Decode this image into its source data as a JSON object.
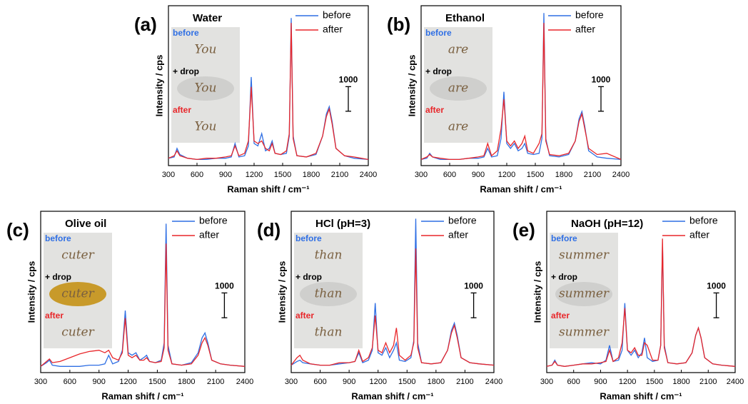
{
  "chart_data": [
    {
      "type": "line",
      "panel": "(a)",
      "title": "Water",
      "xlabel": "Raman shift / cm⁻¹",
      "ylabel": "Intensity / cps",
      "x": [
        300,
        360,
        390,
        420,
        500,
        600,
        700,
        800,
        900,
        960,
        1000,
        1040,
        1100,
        1140,
        1170,
        1200,
        1240,
        1280,
        1320,
        1360,
        1390,
        1420,
        1480,
        1540,
        1570,
        1590,
        1610,
        1650,
        1750,
        1850,
        1920,
        1960,
        1990,
        2020,
        2060,
        2150,
        2250,
        2400
      ],
      "series": [
        {
          "name": "before",
          "color": "#2f6fe4",
          "values": [
            300,
            350,
            700,
            450,
            300,
            250,
            250,
            300,
            300,
            350,
            900,
            350,
            400,
            800,
            3600,
            900,
            800,
            1300,
            600,
            700,
            1000,
            500,
            450,
            500,
            1200,
            6000,
            1200,
            400,
            350,
            450,
            1200,
            2100,
            2400,
            1800,
            700,
            400,
            300,
            250
          ]
        },
        {
          "name": "after",
          "color": "#e8262a",
          "values": [
            300,
            400,
            600,
            400,
            300,
            250,
            300,
            300,
            350,
            400,
            800,
            400,
            500,
            1000,
            3200,
            1000,
            900,
            1000,
            700,
            600,
            900,
            500,
            450,
            600,
            1300,
            5800,
            1100,
            400,
            350,
            500,
            1200,
            2000,
            2300,
            1700,
            700,
            400,
            350,
            250
          ]
        }
      ],
      "xlim": [
        300,
        2400
      ],
      "xticks": [
        300,
        600,
        900,
        1200,
        1500,
        1800,
        2100,
        2400
      ],
      "ylim": [
        0,
        6500
      ],
      "scale_bar": 1000,
      "inset": {
        "labels": [
          "before",
          "+ drop",
          "after"
        ],
        "word": "You"
      }
    },
    {
      "type": "line",
      "panel": "(b)",
      "title": "Ethanol",
      "xlabel": "Raman shift / cm⁻¹",
      "ylabel": "Intensity / cps",
      "x": [
        300,
        360,
        390,
        420,
        500,
        600,
        700,
        800,
        900,
        960,
        1000,
        1040,
        1100,
        1140,
        1170,
        1200,
        1240,
        1280,
        1320,
        1360,
        1390,
        1420,
        1480,
        1540,
        1570,
        1590,
        1610,
        1650,
        1750,
        1850,
        1920,
        1960,
        1990,
        2020,
        2060,
        2150,
        2250,
        2400
      ],
      "series": [
        {
          "name": "before",
          "color": "#2f6fe4",
          "values": [
            250,
            300,
            500,
            350,
            250,
            250,
            250,
            300,
            300,
            350,
            700,
            350,
            400,
            1100,
            3000,
            900,
            700,
            900,
            600,
            700,
            900,
            500,
            450,
            500,
            1100,
            6200,
            1100,
            400,
            350,
            450,
            1000,
            1900,
            2200,
            1600,
            600,
            350,
            300,
            250
          ]
        },
        {
          "name": "after",
          "color": "#e8262a",
          "values": [
            250,
            350,
            450,
            350,
            300,
            250,
            250,
            300,
            350,
            400,
            900,
            400,
            600,
            1500,
            2700,
            1000,
            800,
            1000,
            700,
            900,
            1200,
            600,
            500,
            900,
            1300,
            5800,
            1000,
            450,
            400,
            500,
            1000,
            1800,
            2100,
            1500,
            700,
            450,
            500,
            250
          ]
        }
      ],
      "xlim": [
        300,
        2400
      ],
      "xticks": [
        300,
        600,
        900,
        1200,
        1500,
        1800,
        2100,
        2400
      ],
      "ylim": [
        0,
        6500
      ],
      "scale_bar": 1000,
      "inset": {
        "labels": [
          "before",
          "+ drop",
          "after"
        ],
        "word": "are"
      }
    },
    {
      "type": "line",
      "panel": "(c)",
      "title": "Olive oil",
      "xlabel": "Raman shift / cm⁻¹",
      "ylabel": "Intensity / cps",
      "x": [
        300,
        360,
        390,
        420,
        500,
        600,
        700,
        800,
        900,
        960,
        1000,
        1040,
        1100,
        1140,
        1170,
        1200,
        1240,
        1280,
        1320,
        1360,
        1390,
        1420,
        1480,
        1540,
        1570,
        1590,
        1610,
        1650,
        1750,
        1850,
        1920,
        1960,
        1990,
        2020,
        2060,
        2150,
        2250,
        2400
      ],
      "series": [
        {
          "name": "before",
          "color": "#2f6fe4",
          "values": [
            250,
            400,
            500,
            300,
            250,
            250,
            250,
            300,
            300,
            350,
            700,
            350,
            450,
            900,
            2500,
            800,
            700,
            800,
            500,
            600,
            700,
            450,
            400,
            500,
            1200,
            6000,
            1100,
            350,
            300,
            400,
            800,
            1400,
            1600,
            1200,
            500,
            350,
            300,
            250
          ]
        },
        {
          "name": "after",
          "color": "#e8262a",
          "values": [
            250,
            450,
            550,
            400,
            450,
            600,
            750,
            850,
            900,
            800,
            900,
            600,
            500,
            800,
            2200,
            700,
            600,
            700,
            500,
            500,
            600,
            450,
            400,
            450,
            1000,
            5200,
            900,
            350,
            300,
            350,
            700,
            1200,
            1400,
            1100,
            500,
            350,
            300,
            250
          ]
        }
      ],
      "xlim": [
        300,
        2400
      ],
      "xticks": [
        300,
        600,
        900,
        1200,
        1500,
        1800,
        2100,
        2400
      ],
      "ylim": [
        0,
        6500
      ],
      "scale_bar": 1000,
      "inset": {
        "labels": [
          "before",
          "+ drop",
          "after"
        ],
        "word": "cuter"
      }
    },
    {
      "type": "line",
      "panel": "(d)",
      "title": "HCl (pH=3)",
      "xlabel": "Raman shift / cm⁻¹",
      "ylabel": "Intensity / cps",
      "x": [
        300,
        360,
        390,
        420,
        500,
        600,
        700,
        800,
        900,
        960,
        1000,
        1040,
        1100,
        1140,
        1170,
        1200,
        1240,
        1280,
        1320,
        1360,
        1390,
        1420,
        1480,
        1540,
        1570,
        1590,
        1610,
        1650,
        1750,
        1850,
        1920,
        1960,
        1990,
        2020,
        2060,
        2150,
        2250,
        2400
      ],
      "series": [
        {
          "name": "before",
          "color": "#2f6fe4",
          "values": [
            300,
            450,
            500,
            400,
            350,
            300,
            300,
            350,
            400,
            450,
            800,
            400,
            500,
            900,
            2800,
            800,
            700,
            1000,
            600,
            900,
            1200,
            500,
            450,
            600,
            1300,
            6200,
            1200,
            400,
            350,
            400,
            900,
            1700,
            2000,
            1500,
            600,
            400,
            350,
            300
          ]
        },
        {
          "name": "after",
          "color": "#e8262a",
          "values": [
            300,
            600,
            700,
            500,
            350,
            300,
            300,
            400,
            400,
            450,
            900,
            450,
            600,
            1000,
            2300,
            900,
            800,
            1200,
            800,
            1100,
            1800,
            700,
            500,
            700,
            1200,
            5000,
            1000,
            400,
            350,
            400,
            900,
            1600,
            1900,
            1400,
            600,
            400,
            350,
            300
          ]
        }
      ],
      "xlim": [
        300,
        2400
      ],
      "xticks": [
        300,
        600,
        900,
        1200,
        1500,
        1800,
        2100,
        2400
      ],
      "ylim": [
        0,
        6500
      ],
      "scale_bar": 1000,
      "inset": {
        "labels": [
          "before",
          "+ drop",
          "after"
        ],
        "word": "than"
      }
    },
    {
      "type": "line",
      "panel": "(e)",
      "title": "NaOH (pH=12)",
      "xlabel": "Raman shift / cm⁻¹",
      "ylabel": "Intensity / cps",
      "x": [
        300,
        360,
        390,
        420,
        500,
        600,
        700,
        800,
        900,
        960,
        1000,
        1040,
        1100,
        1140,
        1170,
        1200,
        1240,
        1280,
        1320,
        1360,
        1390,
        1420,
        1480,
        1540,
        1570,
        1590,
        1610,
        1650,
        1750,
        1850,
        1920,
        1960,
        1990,
        2020,
        2060,
        2150,
        2250,
        2400
      ],
      "series": [
        {
          "name": "before",
          "color": "#2f6fe4",
          "values": [
            250,
            300,
            500,
            300,
            250,
            300,
            350,
            400,
            350,
            500,
            1100,
            450,
            500,
            900,
            2800,
            900,
            700,
            900,
            600,
            800,
            1400,
            600,
            450,
            500,
            1100,
            5200,
            1100,
            400,
            350,
            400,
            800,
            1500,
            1800,
            1400,
            600,
            350,
            300,
            250
          ]
        },
        {
          "name": "after",
          "color": "#e8262a",
          "values": [
            250,
            300,
            450,
            300,
            250,
            300,
            350,
            350,
            400,
            450,
            900,
            450,
            600,
            1200,
            2600,
            900,
            800,
            1000,
            700,
            700,
            1200,
            1100,
            500,
            500,
            1100,
            5400,
            1000,
            400,
            350,
            400,
            800,
            1500,
            1800,
            1400,
            600,
            350,
            300,
            250
          ]
        }
      ],
      "xlim": [
        300,
        2400
      ],
      "xticks": [
        300,
        600,
        900,
        1200,
        1500,
        1800,
        2100,
        2400
      ],
      "ylim": [
        0,
        6500
      ],
      "scale_bar": 1000,
      "inset": {
        "labels": [
          "before",
          "+ drop",
          "after"
        ],
        "word": "summer"
      }
    }
  ]
}
